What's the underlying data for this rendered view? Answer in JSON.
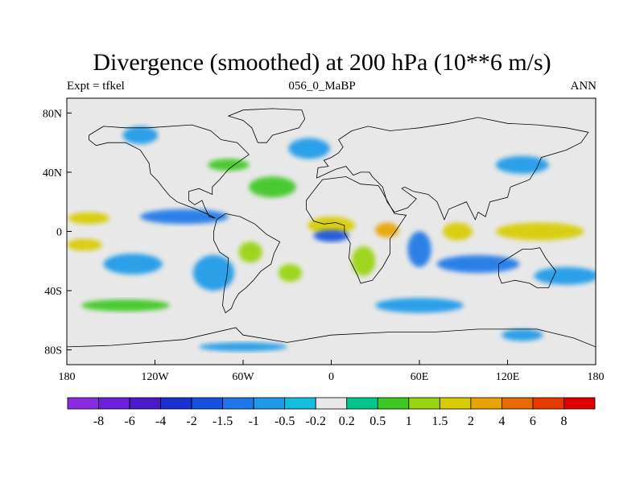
{
  "title": "Divergence (smoothed) at 200 hPa (10**6 m/s)",
  "left_string": "Expt = tfkel",
  "center_string": "056_0_MaBP",
  "right_string": "ANN",
  "chart_data": {
    "type": "heatmap",
    "title": "Divergence (smoothed) at 200 hPa (10**6 m/s)",
    "variable": "200 hPa divergence (smoothed)",
    "units": "10**6 m/s",
    "projection": "cylindrical equidistant",
    "lon_range": [
      -180,
      180
    ],
    "lat_range": [
      -90,
      90
    ],
    "x_ticks": [
      {
        "value": -180,
        "label": "180"
      },
      {
        "value": -120,
        "label": "120W"
      },
      {
        "value": -60,
        "label": "60W"
      },
      {
        "value": 0,
        "label": "0"
      },
      {
        "value": 60,
        "label": "60E"
      },
      {
        "value": 120,
        "label": "120E"
      },
      {
        "value": 180,
        "label": "180"
      }
    ],
    "y_ticks": [
      {
        "value": 80,
        "label": "80N"
      },
      {
        "value": 40,
        "label": "40N"
      },
      {
        "value": 0,
        "label": "0"
      },
      {
        "value": -40,
        "label": "40S"
      },
      {
        "value": -80,
        "label": "80S"
      }
    ],
    "contour_levels": [
      "-8",
      "-6",
      "-4",
      "-2",
      "-1.5",
      "-1",
      "-0.5",
      "-0.2",
      "0.2",
      "0.5",
      "1",
      "1.5",
      "2",
      "4",
      "6",
      "8"
    ],
    "colorbar_colors": [
      "#8a2be2",
      "#6a1fd8",
      "#4a1ac8",
      "#1a2fd0",
      "#1452e0",
      "#1e78e8",
      "#1e9ae8",
      "#16bede",
      "#e8e8e8",
      "#00c88c",
      "#3cc820",
      "#98d410",
      "#d8cc00",
      "#e8a400",
      "#e86a00",
      "#e83800",
      "#e00000"
    ],
    "colorbar_position": "bottom",
    "regions": [
      {
        "lon": 0,
        "lat": 4,
        "rx": 16,
        "ry": 6,
        "value": 1.8
      },
      {
        "lon": 38,
        "lat": 1,
        "rx": 8,
        "ry": 5,
        "value": 2.0
      },
      {
        "lon": 86,
        "lat": 0,
        "rx": 10,
        "ry": 6,
        "value": 1.7
      },
      {
        "lon": 142,
        "lat": 0,
        "rx": 30,
        "ry": 6,
        "value": 1.6
      },
      {
        "lon": -165,
        "lat": 9,
        "rx": 14,
        "ry": 4,
        "value": 1.7
      },
      {
        "lon": -168,
        "lat": -9,
        "rx": 12,
        "ry": 4,
        "value": 1.5
      },
      {
        "lon": -55,
        "lat": -14,
        "rx": 8,
        "ry": 7,
        "value": 1.2
      },
      {
        "lon": -28,
        "lat": -28,
        "rx": 8,
        "ry": 6,
        "value": 1.0
      },
      {
        "lon": 22,
        "lat": -20,
        "rx": 8,
        "ry": 10,
        "value": 1.0
      },
      {
        "lon": -40,
        "lat": 30,
        "rx": 16,
        "ry": 7,
        "value": 0.8
      },
      {
        "lon": -80,
        "lat": -28,
        "rx": 14,
        "ry": 12,
        "value": -1.0
      },
      {
        "lon": -135,
        "lat": -22,
        "rx": 20,
        "ry": 7,
        "value": -1.0
      },
      {
        "lon": 100,
        "lat": -22,
        "rx": 28,
        "ry": 6,
        "value": -1.3
      },
      {
        "lon": 160,
        "lat": -30,
        "rx": 22,
        "ry": 6,
        "value": -1.0
      },
      {
        "lon": -100,
        "lat": 10,
        "rx": 30,
        "ry": 5,
        "value": -1.3
      },
      {
        "lon": 0,
        "lat": -3,
        "rx": 12,
        "ry": 4,
        "value": -1.8
      },
      {
        "lon": 60,
        "lat": -12,
        "rx": 8,
        "ry": 12,
        "value": -1.5
      },
      {
        "lon": -130,
        "lat": 65,
        "rx": 12,
        "ry": 6,
        "value": -0.8
      },
      {
        "lon": -15,
        "lat": 56,
        "rx": 14,
        "ry": 7,
        "value": -0.8
      },
      {
        "lon": 130,
        "lat": 45,
        "rx": 18,
        "ry": 6,
        "value": -0.7
      },
      {
        "lon": 60,
        "lat": -50,
        "rx": 30,
        "ry": 5,
        "value": -0.7
      },
      {
        "lon": -140,
        "lat": -50,
        "rx": 30,
        "ry": 4,
        "value": 0.5
      },
      {
        "lon": -70,
        "lat": 45,
        "rx": 14,
        "ry": 4,
        "value": 0.6
      },
      {
        "lon": -60,
        "lat": -78,
        "rx": 30,
        "ry": 3,
        "value": -0.6
      },
      {
        "lon": 130,
        "lat": -70,
        "rx": 14,
        "ry": 4,
        "value": -0.6
      }
    ]
  }
}
